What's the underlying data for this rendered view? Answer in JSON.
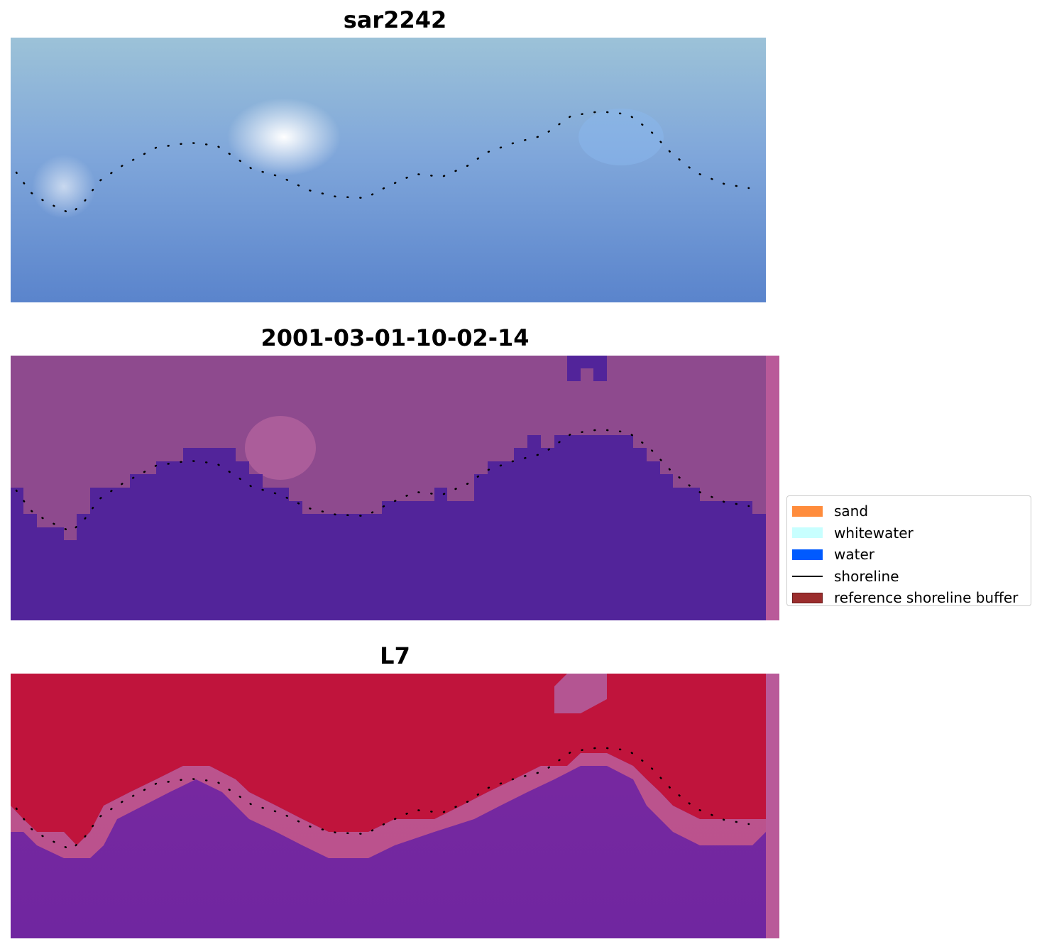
{
  "panels": [
    {
      "title": "sar2242",
      "colors": {
        "top": "#9cc2d8",
        "bright": "#f4f4ff",
        "bottom": "#5a84cc"
      }
    },
    {
      "title": "2001-03-01-10-02-14",
      "colors": {
        "land": "#8e4a8e",
        "water": "#52249a",
        "edge": "#b95a99"
      }
    },
    {
      "title": "L7",
      "colors": {
        "land": "#c0143c",
        "transition": "#c85a8a",
        "water": "#7a2aa0",
        "edge": "#b95a99"
      }
    }
  ],
  "legend": {
    "items": [
      {
        "label": "sand",
        "color": "#ff8c3c",
        "kind": "patch"
      },
      {
        "label": "whitewater",
        "color": "#c8ffff",
        "kind": "patch"
      },
      {
        "label": "water",
        "color": "#005aff",
        "kind": "patch"
      },
      {
        "label": "shoreline",
        "color": "#000000",
        "kind": "line"
      },
      {
        "label": "reference shoreline buffer",
        "color": "#9b2d2d",
        "kind": "patch-border"
      }
    ]
  }
}
